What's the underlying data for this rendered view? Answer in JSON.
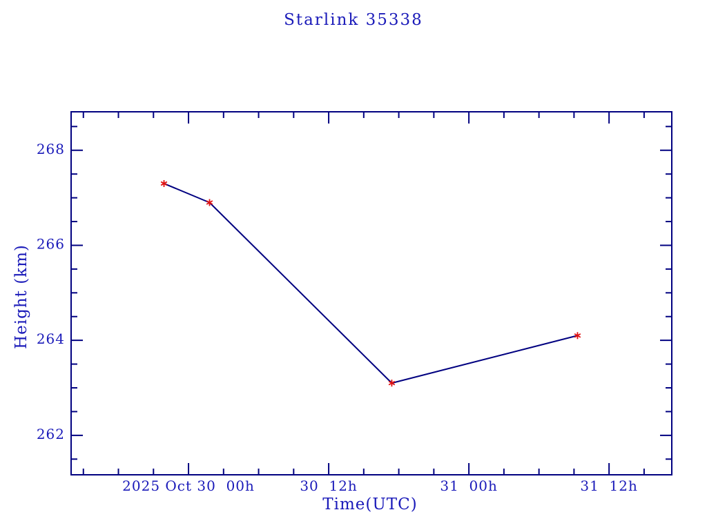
{
  "window": {
    "background": "#ffffff"
  },
  "chart_data": {
    "type": "line",
    "title": "Starlink 35338",
    "xlabel": "Time(UTC)",
    "ylabel": "Height (km)",
    "x_unit": "hours relative to 2025 Oct 30 00h UTC",
    "xlim": [
      -10.05,
      41.37
    ],
    "ylim": [
      261.17,
      268.81
    ],
    "grid": false,
    "legend": "none",
    "x_major_ticks": [
      {
        "hours": 0,
        "label": "2025 Oct 30  00h"
      },
      {
        "hours": 12,
        "label": "30  12h"
      },
      {
        "hours": 24,
        "label": "31  00h"
      },
      {
        "hours": 36,
        "label": "31  12h"
      }
    ],
    "x_minor_tick_step_hours": 3,
    "y_major_ticks": [
      {
        "value": 262,
        "label": "262"
      },
      {
        "value": 264,
        "label": "264"
      },
      {
        "value": 266,
        "label": "266"
      },
      {
        "value": 268,
        "label": "268"
      }
    ],
    "y_minor_tick_step": 0.5,
    "series": [
      {
        "name": "height",
        "marker": "asterisk",
        "points": [
          {
            "time_utc": "2025 Oct 29 ~21:55",
            "hours": -2.1,
            "height_km": 267.3
          },
          {
            "time_utc": "2025 Oct 30 ~01:50",
            "hours": 1.8,
            "height_km": 266.9
          },
          {
            "time_utc": "2025 Oct 30 ~17:25",
            "hours": 17.4,
            "height_km": 263.1
          },
          {
            "time_utc": "2025 Oct 31 ~09:20",
            "hours": 33.3,
            "height_km": 264.1
          }
        ]
      }
    ],
    "colors": {
      "frame": "#000080",
      "line": "#000080",
      "marker": "#e01010",
      "text": "#1a1ab9"
    }
  }
}
